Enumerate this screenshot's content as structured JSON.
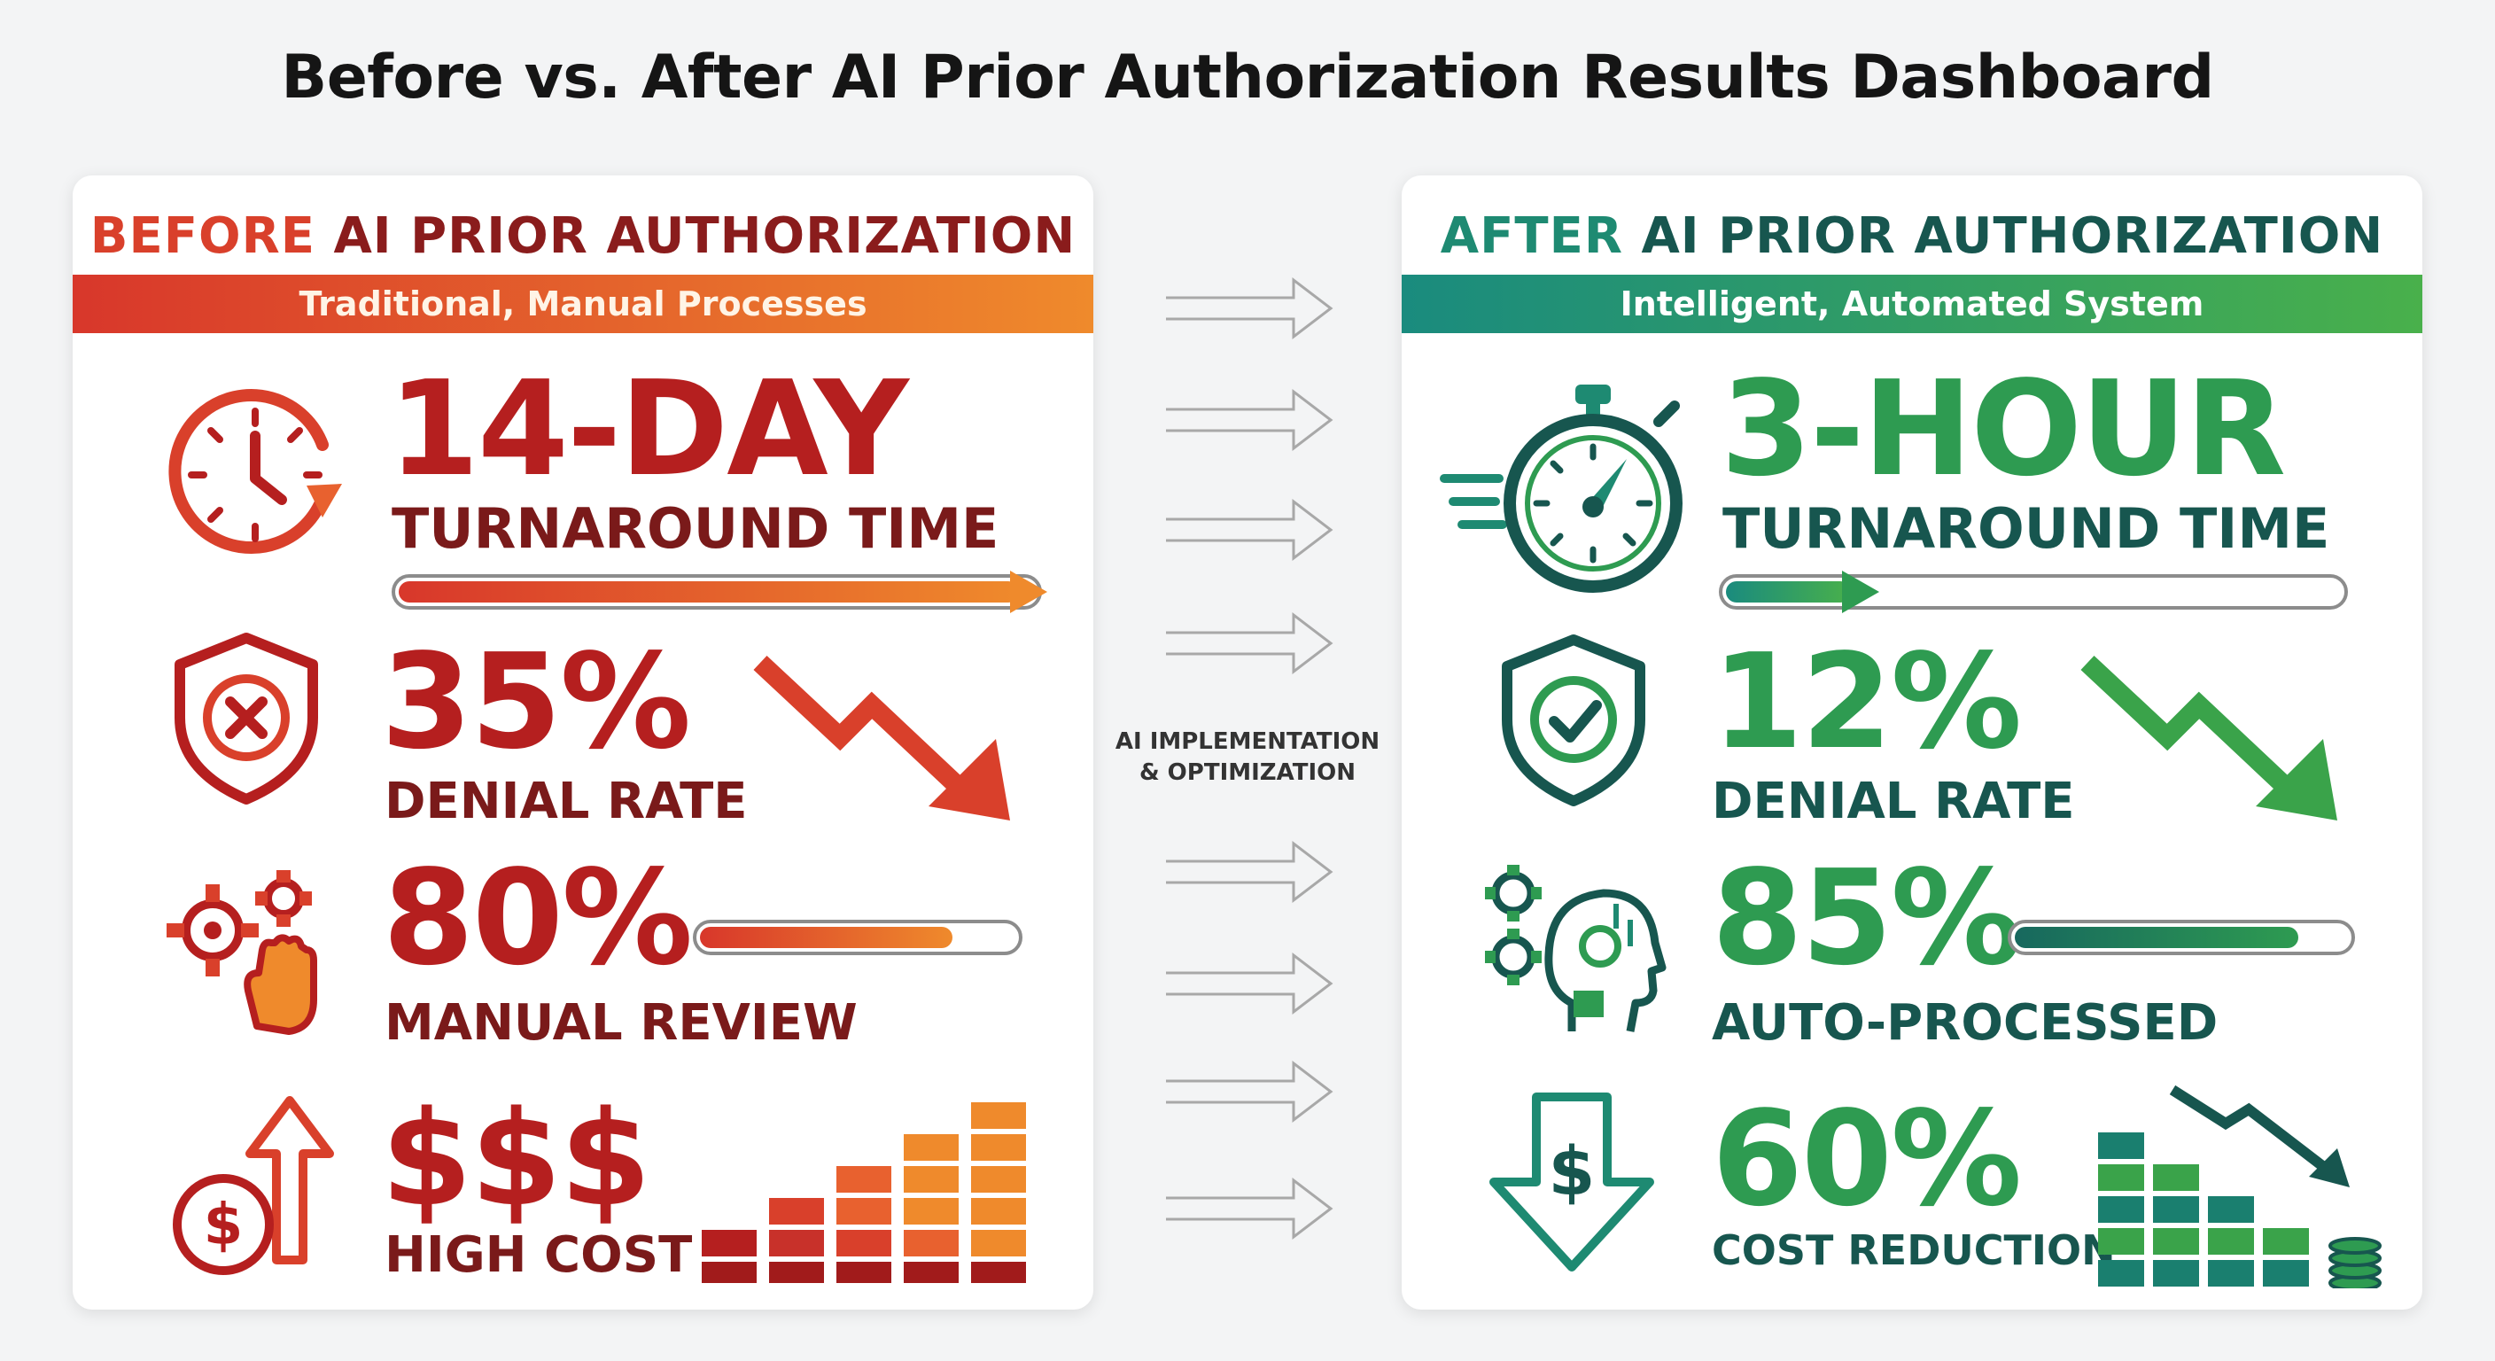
{
  "title": "Before vs. After AI Prior Authorization Results Dashboard",
  "center_label": [
    "AI IMPLEMENTATION",
    "& OPTIMIZATION"
  ],
  "before": {
    "heading_accent": "BEFORE",
    "heading_rest": " AI PRIOR AUTHORIZATION",
    "subtitle": "Traditional, Manual Processes",
    "turnaround": {
      "value": "14-DAY",
      "label": "TURNAROUND TIME",
      "progress": 1.0
    },
    "denial": {
      "value": "35%",
      "label": "DENIAL RATE"
    },
    "manual": {
      "value": "80%",
      "label": "MANUAL REVIEW",
      "progress": 0.8
    },
    "cost": {
      "value": "$$$",
      "label": "HIGH COST"
    },
    "colors": {
      "accent": "#d9402b",
      "dark": "#8a1c1c",
      "gradient_end": "#ef8a2c"
    }
  },
  "after": {
    "heading_accent": "AFTER",
    "heading_rest": " AI PRIOR AUTHORIZATION",
    "subtitle": "Intelligent, Automated System",
    "turnaround": {
      "value": "3-HOUR",
      "label": "TURNAROUND TIME",
      "progress": 0.22
    },
    "denial": {
      "value": "12%",
      "label": "DENIAL RATE"
    },
    "auto": {
      "value": "85%",
      "label": "AUTO-PROCESSED",
      "progress": 0.85
    },
    "cost": {
      "value": "60%",
      "label": "COST REDUCTION"
    },
    "colors": {
      "accent": "#1e8a72",
      "green": "#2e9b51",
      "dark": "#17564f"
    }
  },
  "icons": {
    "before": [
      "clock-icon",
      "shield-x-icon",
      "gears-hand-icon",
      "dollar-up-arrow-icon",
      "trend-down-arrow-icon",
      "rising-bars-icon"
    ],
    "after": [
      "stopwatch-icon",
      "shield-check-icon",
      "ai-head-gears-icon",
      "dollar-down-arrow-icon",
      "trend-down-arrow-icon",
      "falling-bars-coins-icon"
    ],
    "between": "flow-arrow-icon"
  }
}
